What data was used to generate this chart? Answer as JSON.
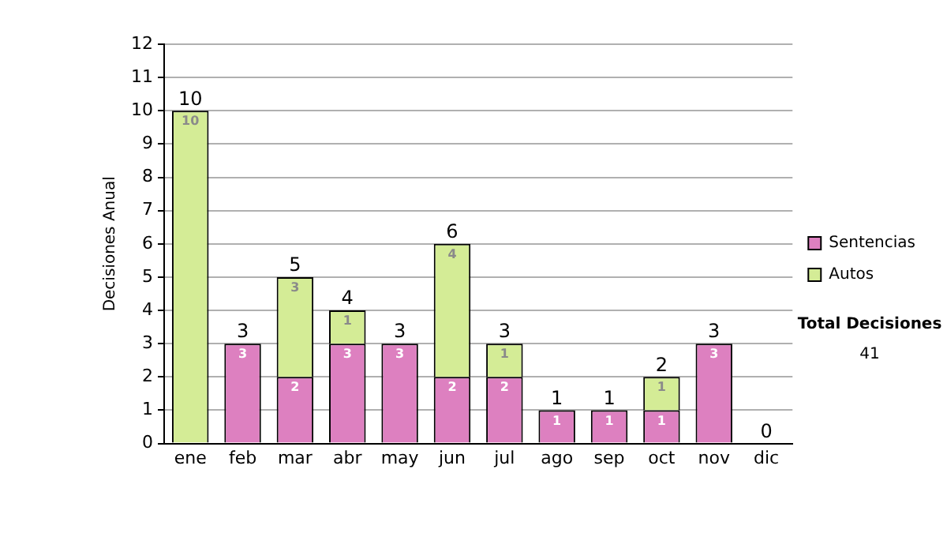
{
  "chart_data": {
    "type": "bar",
    "stacked": true,
    "ylabel": "Decisiones Anual",
    "categories": [
      "ene",
      "feb",
      "mar",
      "abr",
      "may",
      "jun",
      "jul",
      "ago",
      "sep",
      "oct",
      "nov",
      "dic"
    ],
    "series": [
      {
        "name": "Sentencias",
        "color": "#dd80c0",
        "values": [
          0,
          3,
          2,
          3,
          3,
          2,
          2,
          1,
          1,
          1,
          3,
          0
        ],
        "value_labels": [
          null,
          "3",
          "2",
          "3",
          "3",
          "2",
          "2",
          "1",
          "1",
          "1",
          "3",
          null
        ]
      },
      {
        "name": "Autos",
        "color": "#d4ec96",
        "values": [
          10,
          0,
          3,
          1,
          0,
          4,
          1,
          0,
          0,
          1,
          0,
          0
        ],
        "value_labels": [
          "10",
          null,
          "3",
          "1",
          null,
          "4",
          "1",
          null,
          null,
          "1",
          null,
          null
        ]
      }
    ],
    "totals": [
      "10",
      "3",
      "5",
      "4",
      "3",
      "6",
      "3",
      "1",
      "1",
      "2",
      "3",
      "0"
    ],
    "ylim": [
      0,
      12
    ],
    "yticks": [
      0,
      1,
      2,
      3,
      4,
      5,
      6,
      7,
      8,
      9,
      10,
      11,
      12
    ],
    "grid": "y",
    "legend": "right",
    "annotations": [
      "Total Decisiones",
      "41"
    ]
  }
}
